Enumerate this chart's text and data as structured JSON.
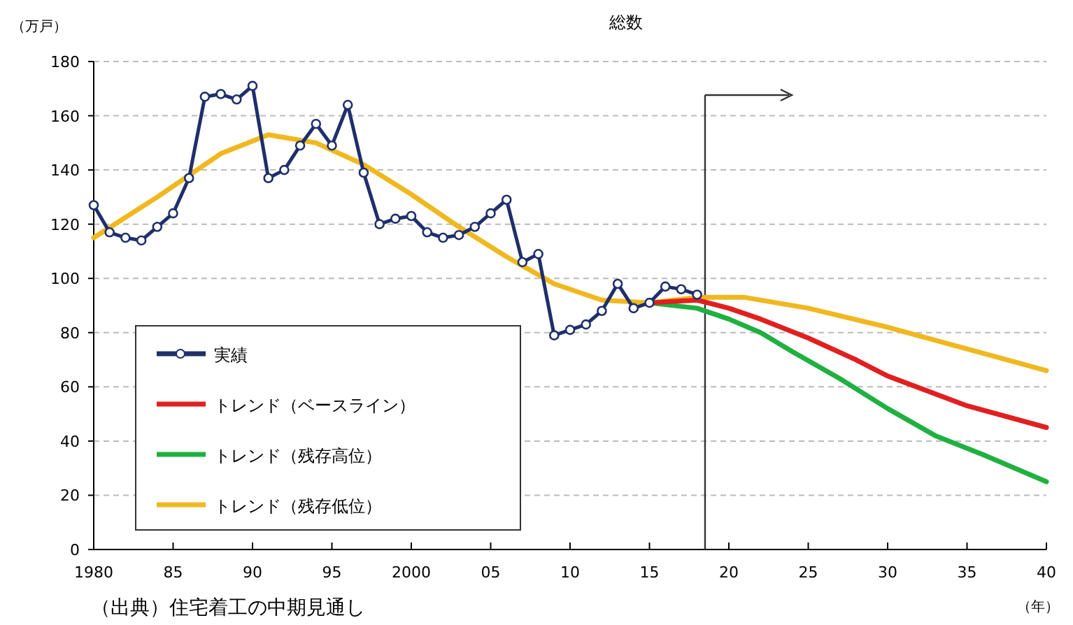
{
  "chart_data": {
    "type": "line",
    "title": "総数",
    "ylabel": "（万戸）",
    "xlabel": "（年）",
    "xlim": [
      1980,
      2040
    ],
    "ylim": [
      0,
      180
    ],
    "xticks": [
      {
        "value": 1980,
        "label": "1980"
      },
      {
        "value": 1985,
        "label": "85"
      },
      {
        "value": 1990,
        "label": "90"
      },
      {
        "value": 1995,
        "label": "95"
      },
      {
        "value": 2000,
        "label": "2000"
      },
      {
        "value": 2005,
        "label": "05"
      },
      {
        "value": 2010,
        "label": "10"
      },
      {
        "value": 2015,
        "label": "15"
      },
      {
        "value": 2020,
        "label": "20"
      },
      {
        "value": 2025,
        "label": "25"
      },
      {
        "value": 2030,
        "label": "30"
      },
      {
        "value": 2035,
        "label": "35"
      },
      {
        "value": 2040,
        "label": "40"
      }
    ],
    "yticks": [
      0,
      20,
      40,
      60,
      80,
      100,
      120,
      140,
      160,
      180
    ],
    "grid": "y",
    "legend": "bottom left",
    "series": [
      {
        "name": "実績",
        "color": "#1f2f6b",
        "marker": "circle",
        "x": [
          1980,
          1981,
          1982,
          1983,
          1984,
          1985,
          1986,
          1987,
          1988,
          1989,
          1990,
          1991,
          1992,
          1993,
          1994,
          1995,
          1996,
          1997,
          1998,
          1999,
          2000,
          2001,
          2002,
          2003,
          2004,
          2005,
          2006,
          2007,
          2008,
          2009,
          2010,
          2011,
          2012,
          2013,
          2014,
          2015,
          2016,
          2017,
          2018
        ],
        "values": [
          127,
          117,
          115,
          114,
          119,
          124,
          137,
          167,
          168,
          166,
          171,
          137,
          140,
          149,
          157,
          149,
          164,
          139,
          120,
          122,
          123,
          117,
          115,
          116,
          119,
          124,
          129,
          106,
          109,
          79,
          81,
          83,
          88,
          98,
          89,
          91,
          97,
          96,
          94
        ]
      },
      {
        "name": "トレンド（ベースライン）",
        "color": "#e02020",
        "x": [
          2015,
          2018,
          2020,
          2022,
          2025,
          2028,
          2030,
          2035,
          2040
        ],
        "values": [
          91,
          92,
          89,
          85,
          78,
          70,
          64,
          53,
          45
        ]
      },
      {
        "name": "トレンド（残存高位）",
        "color": "#20b040",
        "x": [
          2015,
          2018,
          2020,
          2022,
          2024,
          2027,
          2030,
          2033,
          2036,
          2040
        ],
        "values": [
          91,
          89,
          85,
          80,
          73,
          63,
          52,
          42,
          35,
          25
        ]
      },
      {
        "name": "トレンド（残存低位）",
        "color": "#f0b820",
        "x": [
          1980,
          1984,
          1988,
          1991,
          1994,
          1997,
          2000,
          2003,
          2006,
          2009,
          2012,
          2015,
          2018,
          2021,
          2025,
          2030,
          2035,
          2040
        ],
        "values": [
          115,
          130,
          146,
          153,
          150,
          142,
          131,
          119,
          108,
          98,
          92,
          91,
          93,
          93,
          89,
          82,
          74,
          66
        ]
      }
    ],
    "ref_lines": [
      {
        "axis": "x",
        "value": 2018.5,
        "color": "#333333"
      }
    ],
    "annotations": [
      "（出典）住宅着工の中期見通し"
    ]
  }
}
